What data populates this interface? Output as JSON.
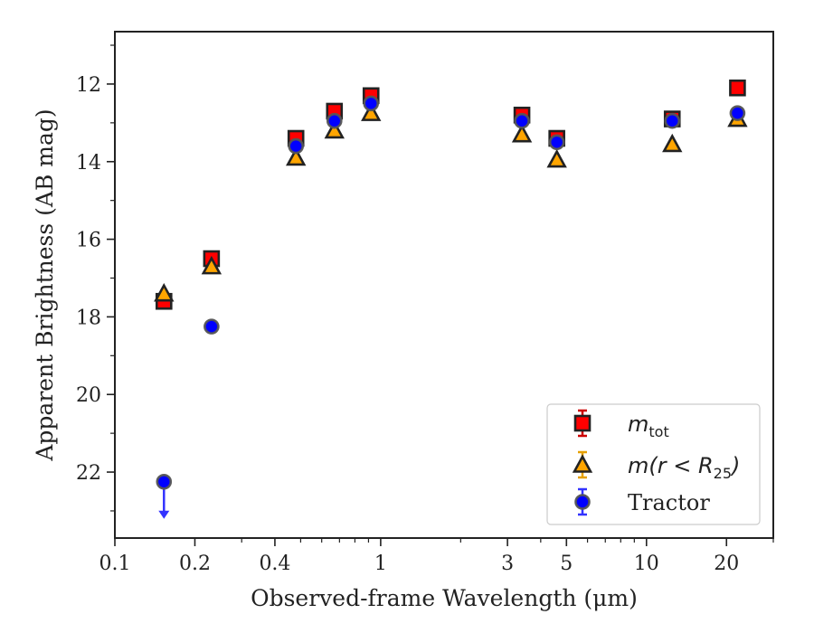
{
  "chart_data": {
    "type": "scatter",
    "xlabel": "Observed-frame Wavelength (μm)",
    "ylabel": "Apparent Brightness (AB mag)",
    "xscale": "log",
    "xlim": [
      0.1,
      30
    ],
    "ylim": [
      23.7,
      10.65
    ],
    "y_inverted": true,
    "x_major_ticks": [
      0.1,
      0.2,
      0.4,
      1,
      3,
      5,
      10,
      20
    ],
    "x_tick_labels": [
      "0.1",
      "0.2",
      "0.4",
      "1",
      "3",
      "5",
      "10",
      "20"
    ],
    "y_ticks": [
      12,
      14,
      16,
      18,
      20,
      22
    ],
    "y_tick_labels": [
      "12",
      "14",
      "16",
      "18",
      "20",
      "22"
    ],
    "legend_position": "lower-right",
    "grid": false,
    "series": [
      {
        "name": "m_tot",
        "legend_main": "m",
        "legend_sub": "tot",
        "marker": "square",
        "color": "#ff0000",
        "edgecolor": "#222222",
        "errcolor": "#cc0000",
        "x": [
          0.153,
          0.231,
          0.48,
          0.67,
          0.92,
          3.4,
          4.6,
          12.5,
          22
        ],
        "y": [
          17.6,
          16.5,
          13.4,
          12.7,
          12.3,
          12.8,
          13.4,
          12.9,
          12.1
        ]
      },
      {
        "name": "m(r < R25)",
        "legend_main": "m(r < R",
        "legend_sub": "25",
        "legend_tail": ")",
        "marker": "triangle",
        "color": "#ffa500",
        "edgecolor": "#222222",
        "errcolor": "#e6a000",
        "x": [
          0.153,
          0.231,
          0.48,
          0.67,
          0.92,
          3.4,
          4.6,
          12.5,
          22
        ],
        "y": [
          17.4,
          16.7,
          13.9,
          13.2,
          12.75,
          13.3,
          13.95,
          13.55,
          12.9
        ]
      },
      {
        "name": "Tractor",
        "legend_main": "Tractor",
        "marker": "circle",
        "color": "#0000ff",
        "edgecolor": "#555555",
        "errcolor": "#3333ff",
        "x": [
          0.153,
          0.231,
          0.48,
          0.67,
          0.92,
          3.4,
          4.6,
          12.5,
          22
        ],
        "y": [
          22.25,
          18.25,
          13.6,
          12.95,
          12.5,
          12.95,
          13.5,
          12.95,
          12.75
        ],
        "upper_limit": [
          true,
          false,
          false,
          false,
          false,
          false,
          false,
          false,
          false
        ]
      }
    ]
  }
}
